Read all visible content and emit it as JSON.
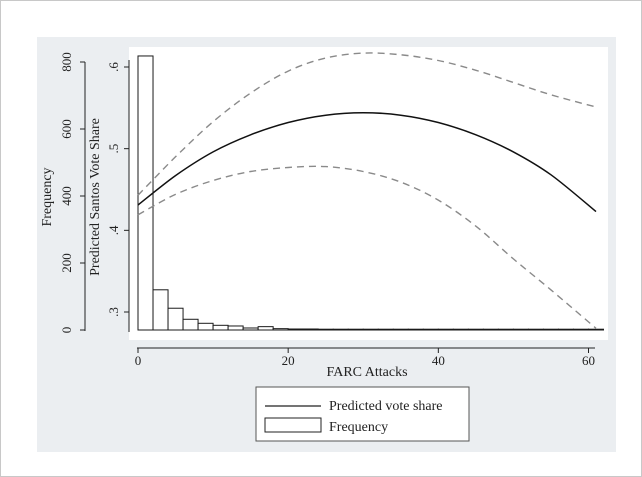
{
  "chart_data": {
    "type": "line",
    "title": "",
    "xlabel": "FARC Attacks",
    "ylabel_left_outer": "Frequency",
    "ylabel_left_inner": "Predicted Santos Vote Share",
    "xlim": [
      0,
      61
    ],
    "x_ticks": [
      0,
      20,
      40,
      60
    ],
    "frequency_axis": {
      "ylim": [
        0,
        800
      ],
      "ticks": [
        0,
        200,
        400,
        600,
        800
      ]
    },
    "vote_share_axis": {
      "ylim": [
        0.28,
        0.62
      ],
      "ticks": [
        0.3,
        0.4,
        0.5,
        0.6
      ],
      "tick_labels": [
        ".3",
        ".4",
        ".5",
        ".6"
      ]
    },
    "grid": false,
    "legend_position": "bottom-center",
    "series": [
      {
        "name": "Predicted vote share",
        "kind": "line",
        "style": "solid",
        "x": [
          0,
          5,
          10,
          15,
          20,
          25,
          30,
          35,
          40,
          45,
          50,
          55,
          61
        ],
        "y": [
          0.431,
          0.467,
          0.496,
          0.517,
          0.532,
          0.541,
          0.544,
          0.541,
          0.532,
          0.517,
          0.496,
          0.468,
          0.423
        ]
      },
      {
        "name": "",
        "kind": "line",
        "style": "dashed",
        "role": "upper bound",
        "x": [
          0,
          5,
          10,
          15,
          20,
          25,
          30,
          35,
          40,
          45,
          50,
          55,
          61
        ],
        "y": [
          0.443,
          0.49,
          0.533,
          0.568,
          0.595,
          0.611,
          0.617,
          0.615,
          0.608,
          0.596,
          0.581,
          0.566,
          0.551
        ]
      },
      {
        "name": "",
        "kind": "line",
        "style": "dashed",
        "role": "lower bound",
        "x": [
          0,
          5,
          10,
          15,
          20,
          25,
          30,
          35,
          40,
          45,
          50,
          55,
          61
        ],
        "y": [
          0.419,
          0.444,
          0.461,
          0.472,
          0.477,
          0.478,
          0.472,
          0.459,
          0.437,
          0.405,
          0.365,
          0.327,
          0.28
        ]
      },
      {
        "name": "Frequency",
        "kind": "histogram",
        "bin_width": 2,
        "bin_starts": [
          0,
          2,
          4,
          6,
          8,
          10,
          12,
          14,
          16,
          18,
          20,
          22,
          24,
          26,
          28,
          30,
          32,
          34,
          36,
          38,
          40,
          42,
          44,
          46,
          48,
          50,
          52,
          54,
          56,
          58,
          60
        ],
        "values": [
          818,
          120,
          65,
          32,
          20,
          14,
          12,
          6,
          10,
          4,
          3,
          3,
          2,
          2,
          0,
          2,
          2,
          1,
          1,
          1,
          1,
          0,
          1,
          1,
          0,
          0,
          0,
          1,
          1,
          1,
          1
        ]
      }
    ],
    "legend": [
      "Predicted vote share",
      "Frequency"
    ]
  }
}
